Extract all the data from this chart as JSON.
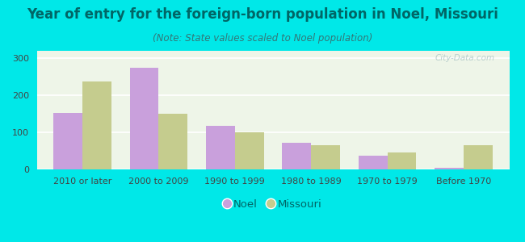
{
  "title": "Year of entry for the foreign-born population in Noel, Missouri",
  "subtitle": "(Note: State values scaled to Noel population)",
  "categories": [
    "2010 or later",
    "2000 to 2009",
    "1990 to 1999",
    "1980 to 1989",
    "1970 to 1979",
    "Before 1970"
  ],
  "noel_values": [
    152,
    275,
    118,
    72,
    37,
    5
  ],
  "missouri_values": [
    238,
    150,
    100,
    65,
    45,
    65
  ],
  "noel_color": "#c9a0dc",
  "missouri_color": "#c5cc8e",
  "ylim": [
    0,
    320
  ],
  "yticks": [
    0,
    100,
    200,
    300
  ],
  "background_color": "#00e8e8",
  "plot_bg_color": "#eef5e8",
  "bar_width": 0.38,
  "title_fontsize": 12,
  "subtitle_fontsize": 8.5,
  "tick_fontsize": 8,
  "title_color": "#006666",
  "subtitle_color": "#337777",
  "tick_color": "#444444",
  "watermark": "City-Data.com",
  "watermark_color": "#b0c8c8"
}
